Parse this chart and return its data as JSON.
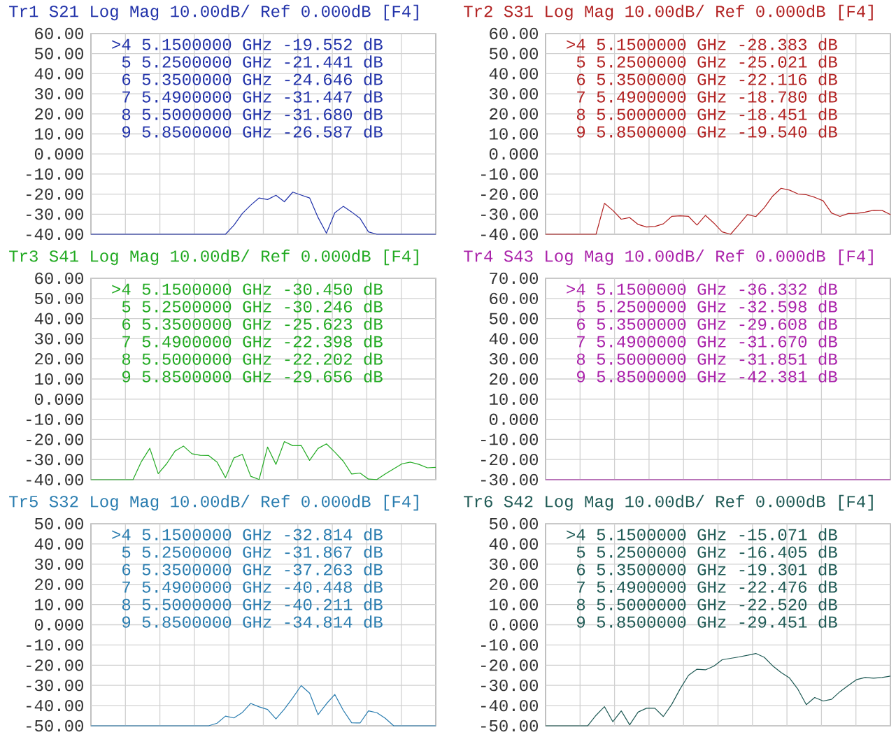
{
  "chart_data": [
    {
      "type": "line",
      "title": "Tr1 S21 Log Mag 10.00dB/ Ref 0.000dB [F4]",
      "ylim": [
        -40,
        60
      ],
      "grid": true,
      "tick_labels": "y",
      "categories": [
        null,
        null,
        null,
        null,
        null,
        null,
        null,
        null,
        null,
        null,
        null,
        null,
        null,
        null,
        null,
        null,
        null,
        null,
        null,
        null,
        null,
        null,
        null,
        null,
        null,
        null,
        null,
        null,
        null,
        null,
        null,
        null,
        null,
        null,
        null,
        null,
        null,
        null,
        null,
        null,
        null,
        null
      ],
      "yticks": [
        {
          "value": -40,
          "label": "-40.00"
        },
        {
          "value": -30,
          "label": "-30.00"
        },
        {
          "value": -20,
          "label": "-20.00"
        },
        {
          "value": -10,
          "label": "-10.00"
        },
        {
          "value": 0,
          "label": "0.000"
        },
        {
          "value": 10,
          "label": "10.00"
        },
        {
          "value": 20,
          "label": "20.00"
        },
        {
          "value": 30,
          "label": "30.00"
        },
        {
          "value": 40,
          "label": "40.00"
        },
        {
          "value": 50,
          "label": "50.00"
        },
        {
          "value": 60,
          "label": "60.00"
        }
      ],
      "annotations": [
        ">4 5.1500000 GHz -19.552 dB",
        "5 5.2500000 GHz -21.441 dB",
        "6 5.3500000 GHz -24.646 dB",
        "7 5.4900000 GHz -31.447 dB",
        "8 5.5000000 GHz -31.680 dB",
        "9 5.8500000 GHz -26.587 dB"
      ],
      "series": [
        {
          "color": "#2233aa",
          "values": [
            -40,
            -40,
            -40,
            -40,
            -40,
            -40,
            -40,
            -40,
            -40,
            -40,
            -40,
            -40,
            -40,
            -40,
            -40,
            -40,
            -40,
            -35.5,
            -29.7,
            -25.5,
            -21.9,
            -22.7,
            -20.6,
            -23.8,
            -19.0,
            -20.5,
            -21.9,
            -31.6,
            -39.5,
            -29.3,
            -26.1,
            -28.9,
            -32.1,
            -38.8,
            -40,
            -40,
            -40,
            -40,
            -40,
            -40,
            -40,
            -40
          ]
        }
      ]
    },
    {
      "type": "line",
      "title": "Tr2 S31 Log Mag 10.00dB/ Ref 0.000dB [F4]",
      "ylim": [
        -40,
        60
      ],
      "grid": true,
      "tick_labels": "y",
      "categories": [
        null,
        null,
        null,
        null,
        null,
        null,
        null,
        null,
        null,
        null,
        null,
        null,
        null,
        null,
        null,
        null,
        null,
        null,
        null,
        null,
        null,
        null,
        null,
        null,
        null,
        null,
        null,
        null,
        null,
        null,
        null,
        null,
        null,
        null,
        null,
        null,
        null,
        null,
        null,
        null,
        null,
        null
      ],
      "yticks": [
        {
          "value": -40,
          "label": "-40.00"
        },
        {
          "value": -30,
          "label": "-30.00"
        },
        {
          "value": -20,
          "label": "-20.00"
        },
        {
          "value": -10,
          "label": "-10.00"
        },
        {
          "value": 0,
          "label": "0.000"
        },
        {
          "value": 10,
          "label": "10.00"
        },
        {
          "value": 20,
          "label": "20.00"
        },
        {
          "value": 30,
          "label": "30.00"
        },
        {
          "value": 40,
          "label": "40.00"
        },
        {
          "value": 50,
          "label": "50.00"
        },
        {
          "value": 60,
          "label": "60.00"
        }
      ],
      "annotations": [
        ">4 5.1500000 GHz -28.383 dB",
        "5 5.2500000 GHz -25.021 dB",
        "6 5.3500000 GHz -22.116 dB",
        "7 5.4900000 GHz -18.780 dB",
        "8 5.5000000 GHz -18.451 dB",
        "9 5.8500000 GHz -19.540 dB"
      ],
      "series": [
        {
          "color": "#b22222",
          "values": [
            -40,
            -40,
            -40,
            -40,
            -40,
            -40,
            -40,
            -24.6,
            -28.1,
            -32.5,
            -31.7,
            -35.1,
            -36.4,
            -36.1,
            -34.8,
            -31.1,
            -30.8,
            -31.1,
            -35.4,
            -30.6,
            -34.4,
            -38.8,
            -40,
            -35.2,
            -30.2,
            -31.2,
            -26.8,
            -21.0,
            -17.1,
            -18.0,
            -19.9,
            -20.3,
            -21.6,
            -23.3,
            -29.4,
            -31.1,
            -29.7,
            -29.6,
            -29.0,
            -28.0,
            -28.1,
            -30.2
          ]
        }
      ]
    },
    {
      "type": "line",
      "title": "Tr3 S41 Log Mag 10.00dB/ Ref 0.000dB [F4]",
      "ylim": [
        -40,
        60
      ],
      "grid": true,
      "tick_labels": "y",
      "categories": [
        null,
        null,
        null,
        null,
        null,
        null,
        null,
        null,
        null,
        null,
        null,
        null,
        null,
        null,
        null,
        null,
        null,
        null,
        null,
        null,
        null,
        null,
        null,
        null,
        null,
        null,
        null,
        null,
        null,
        null,
        null,
        null,
        null,
        null,
        null,
        null,
        null,
        null,
        null,
        null,
        null,
        null
      ],
      "yticks": [
        {
          "value": -40,
          "label": "-40.00"
        },
        {
          "value": -30,
          "label": "-30.00"
        },
        {
          "value": -20,
          "label": "-20.00"
        },
        {
          "value": -10,
          "label": "-10.00"
        },
        {
          "value": 0,
          "label": "0.000"
        },
        {
          "value": 10,
          "label": "10.00"
        },
        {
          "value": 20,
          "label": "20.00"
        },
        {
          "value": 30,
          "label": "30.00"
        },
        {
          "value": 40,
          "label": "40.00"
        },
        {
          "value": 50,
          "label": "50.00"
        },
        {
          "value": 60,
          "label": "60.00"
        }
      ],
      "annotations": [
        ">4 5.1500000 GHz -30.450 dB",
        "5 5.2500000 GHz -30.246 dB",
        "6 5.3500000 GHz -25.623 dB",
        "7 5.4900000 GHz -22.398 dB",
        "8 5.5000000 GHz -22.202 dB",
        "9 5.8500000 GHz -29.656 dB"
      ],
      "series": [
        {
          "color": "#22aa22",
          "values": [
            -40,
            -40,
            -40,
            -40,
            -40,
            -40,
            -31.0,
            -24.4,
            -37.0,
            -32.1,
            -25.8,
            -23.3,
            -27.1,
            -27.9,
            -28.0,
            -31.3,
            -39.0,
            -29.2,
            -27.4,
            -38.3,
            -39.9,
            -23.8,
            -32.4,
            -21.1,
            -23.1,
            -23.0,
            -30.4,
            -24.5,
            -22.2,
            -26.3,
            -30.8,
            -37.2,
            -36.7,
            -39.7,
            -39.9,
            -37.1,
            -34.6,
            -32.1,
            -31.3,
            -32.4,
            -34.1,
            -33.9
          ]
        }
      ]
    },
    {
      "type": "line",
      "title": "Tr4 S43 Log Mag 10.00dB/ Ref 0.000dB [F4]",
      "ylim": [
        -30,
        70
      ],
      "grid": true,
      "tick_labels": "y",
      "categories": [
        null,
        null,
        null,
        null,
        null,
        null,
        null,
        null,
        null,
        null,
        null,
        null,
        null,
        null,
        null,
        null,
        null,
        null,
        null,
        null,
        null,
        null,
        null,
        null,
        null,
        null,
        null,
        null,
        null,
        null,
        null,
        null,
        null,
        null,
        null,
        null,
        null,
        null,
        null,
        null,
        null,
        null
      ],
      "yticks": [
        {
          "value": -30,
          "label": "-30.00"
        },
        {
          "value": -20,
          "label": "-20.00"
        },
        {
          "value": -10,
          "label": "-10.00"
        },
        {
          "value": 0,
          "label": "0.000"
        },
        {
          "value": 10,
          "label": "10.00"
        },
        {
          "value": 20,
          "label": "20.00"
        },
        {
          "value": 30,
          "label": "30.00"
        },
        {
          "value": 40,
          "label": "40.00"
        },
        {
          "value": 50,
          "label": "50.00"
        },
        {
          "value": 60,
          "label": "60.00"
        },
        {
          "value": 70,
          "label": "70.00"
        }
      ],
      "annotations": [
        ">4 5.1500000 GHz -36.332 dB",
        "5 5.2500000 GHz -32.598 dB",
        "6 5.3500000 GHz -29.608 dB",
        "7 5.4900000 GHz -31.670 dB",
        "8 5.5000000 GHz -31.851 dB",
        "9 5.8500000 GHz -42.381 dB"
      ],
      "series": [
        {
          "color": "#aa22aa",
          "values": [
            -30,
            -30,
            -30,
            -30,
            -30,
            -30,
            -30,
            -30,
            -30,
            -30,
            -30,
            -30,
            -30,
            -30,
            -30,
            -30,
            -30,
            -30,
            -30,
            -30,
            -30,
            -30,
            -30,
            -30,
            -30,
            -30,
            -30,
            -30,
            -30,
            -30,
            -30,
            -30,
            -30,
            -30,
            -30,
            -30,
            -30,
            -30,
            -30,
            -30,
            -30,
            -30
          ]
        }
      ]
    },
    {
      "type": "line",
      "title": "Tr5 S32 Log Mag 10.00dB/ Ref 0.000dB [F4]",
      "ylim": [
        -50,
        50
      ],
      "grid": true,
      "tick_labels": "y",
      "categories": [
        null,
        null,
        null,
        null,
        null,
        null,
        null,
        null,
        null,
        null,
        null,
        null,
        null,
        null,
        null,
        null,
        null,
        null,
        null,
        null,
        null,
        null,
        null,
        null,
        null,
        null,
        null,
        null,
        null,
        null,
        null,
        null,
        null,
        null,
        null,
        null,
        null,
        null,
        null,
        null,
        null,
        null
      ],
      "yticks": [
        {
          "value": -50,
          "label": "-50.00"
        },
        {
          "value": -40,
          "label": "-40.00"
        },
        {
          "value": -30,
          "label": "-30.00"
        },
        {
          "value": -20,
          "label": "-20.00"
        },
        {
          "value": -10,
          "label": "-10.00"
        },
        {
          "value": 0,
          "label": "0.000"
        },
        {
          "value": 10,
          "label": "10.00"
        },
        {
          "value": 20,
          "label": "20.00"
        },
        {
          "value": 30,
          "label": "30.00"
        },
        {
          "value": 40,
          "label": "40.00"
        },
        {
          "value": 50,
          "label": "50.00"
        }
      ],
      "annotations": [
        ">4 5.1500000 GHz -32.814 dB",
        "5 5.2500000 GHz -31.867 dB",
        "6 5.3500000 GHz -37.263 dB",
        "7 5.4900000 GHz -40.448 dB",
        "8 5.5000000 GHz -40.211 dB",
        "9 5.8500000 GHz -34.814 dB"
      ],
      "series": [
        {
          "color": "#2a7db0",
          "values": [
            -50,
            -50,
            -50,
            -50,
            -50,
            -50,
            -50,
            -50,
            -50,
            -50,
            -50,
            -50,
            -50,
            -50,
            -50,
            -48.7,
            -45.2,
            -46.1,
            -43.4,
            -38.9,
            -40.6,
            -41.9,
            -46.6,
            -41.7,
            -36.1,
            -30.1,
            -33.8,
            -44.5,
            -39.1,
            -34.5,
            -42.3,
            -48.5,
            -48.6,
            -42.6,
            -43.5,
            -46.3,
            -50,
            -50,
            -50,
            -50,
            -50,
            -50
          ]
        }
      ]
    },
    {
      "type": "line",
      "title": "Tr6 S42 Log Mag 10.00dB/ Ref 0.000dB [F4]",
      "ylim": [
        -50,
        50
      ],
      "grid": true,
      "tick_labels": "y",
      "categories": [
        null,
        null,
        null,
        null,
        null,
        null,
        null,
        null,
        null,
        null,
        null,
        null,
        null,
        null,
        null,
        null,
        null,
        null,
        null,
        null,
        null,
        null,
        null,
        null,
        null,
        null,
        null,
        null,
        null,
        null,
        null,
        null,
        null,
        null,
        null,
        null,
        null,
        null,
        null,
        null,
        null,
        null
      ],
      "yticks": [
        {
          "value": -50,
          "label": "-50.00"
        },
        {
          "value": -40,
          "label": "-40.00"
        },
        {
          "value": -30,
          "label": "-30.00"
        },
        {
          "value": -20,
          "label": "-20.00"
        },
        {
          "value": -10,
          "label": "-10.00"
        },
        {
          "value": 0,
          "label": "0.000"
        },
        {
          "value": 10,
          "label": "10.00"
        },
        {
          "value": 20,
          "label": "20.00"
        },
        {
          "value": 30,
          "label": "30.00"
        },
        {
          "value": 40,
          "label": "40.00"
        },
        {
          "value": 50,
          "label": "50.00"
        }
      ],
      "annotations": [
        ">4 5.1500000 GHz -15.071 dB",
        "5 5.2500000 GHz -16.405 dB",
        "6 5.3500000 GHz -19.301 dB",
        "7 5.4900000 GHz -22.476 dB",
        "8 5.5000000 GHz -22.520 dB",
        "9 5.8500000 GHz -29.451 dB"
      ],
      "series": [
        {
          "color": "#1f5a55",
          "values": [
            -50,
            -50,
            -50,
            -50,
            -50,
            -50,
            -44.8,
            -40.5,
            -48.0,
            -42.6,
            -49.5,
            -43.2,
            -41.3,
            -41.3,
            -45.4,
            -39.4,
            -31.7,
            -25.0,
            -22.0,
            -22.3,
            -20.5,
            -17.3,
            -16.6,
            -15.9,
            -15.1,
            -14.2,
            -16.1,
            -20.3,
            -23.6,
            -26.3,
            -31.9,
            -39.5,
            -36.0,
            -37.7,
            -36.9,
            -33.1,
            -30.0,
            -27.1,
            -26.1,
            -26.4,
            -26.1,
            -25.4
          ]
        }
      ]
    }
  ]
}
